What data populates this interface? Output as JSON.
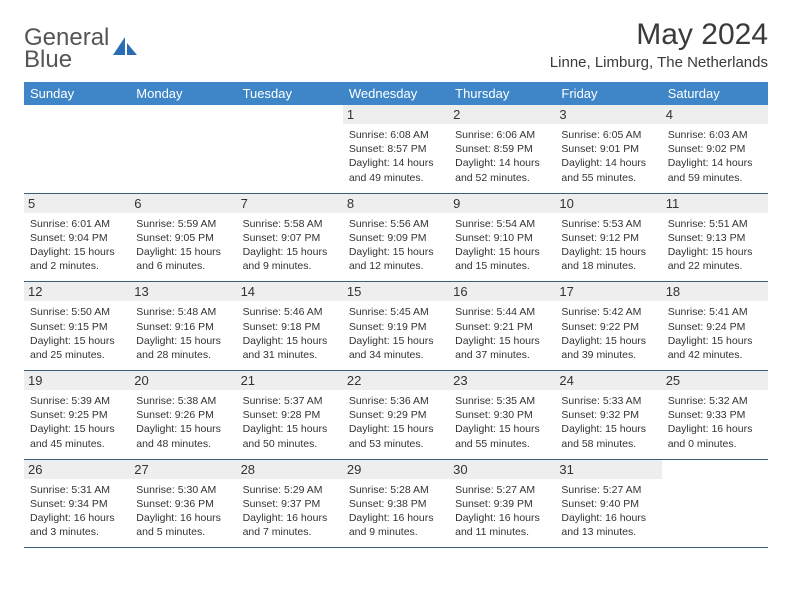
{
  "brand": {
    "line1": "General",
    "line2": "Blue"
  },
  "title": "May 2024",
  "location": "Linne, Limburg, The Netherlands",
  "colors": {
    "header_bg": "#3e86c7",
    "header_text": "#ffffff",
    "daynum_bg": "#eeeeee",
    "week_border": "#3e5f7a",
    "text": "#333333"
  },
  "weekdays": [
    "Sunday",
    "Monday",
    "Tuesday",
    "Wednesday",
    "Thursday",
    "Friday",
    "Saturday"
  ],
  "weeks": [
    [
      null,
      null,
      null,
      {
        "day": "1",
        "sunrise": "Sunrise: 6:08 AM",
        "sunset": "Sunset: 8:57 PM",
        "day1": "Daylight: 14 hours",
        "day2": "and 49 minutes."
      },
      {
        "day": "2",
        "sunrise": "Sunrise: 6:06 AM",
        "sunset": "Sunset: 8:59 PM",
        "day1": "Daylight: 14 hours",
        "day2": "and 52 minutes."
      },
      {
        "day": "3",
        "sunrise": "Sunrise: 6:05 AM",
        "sunset": "Sunset: 9:01 PM",
        "day1": "Daylight: 14 hours",
        "day2": "and 55 minutes."
      },
      {
        "day": "4",
        "sunrise": "Sunrise: 6:03 AM",
        "sunset": "Sunset: 9:02 PM",
        "day1": "Daylight: 14 hours",
        "day2": "and 59 minutes."
      }
    ],
    [
      {
        "day": "5",
        "sunrise": "Sunrise: 6:01 AM",
        "sunset": "Sunset: 9:04 PM",
        "day1": "Daylight: 15 hours",
        "day2": "and 2 minutes."
      },
      {
        "day": "6",
        "sunrise": "Sunrise: 5:59 AM",
        "sunset": "Sunset: 9:05 PM",
        "day1": "Daylight: 15 hours",
        "day2": "and 6 minutes."
      },
      {
        "day": "7",
        "sunrise": "Sunrise: 5:58 AM",
        "sunset": "Sunset: 9:07 PM",
        "day1": "Daylight: 15 hours",
        "day2": "and 9 minutes."
      },
      {
        "day": "8",
        "sunrise": "Sunrise: 5:56 AM",
        "sunset": "Sunset: 9:09 PM",
        "day1": "Daylight: 15 hours",
        "day2": "and 12 minutes."
      },
      {
        "day": "9",
        "sunrise": "Sunrise: 5:54 AM",
        "sunset": "Sunset: 9:10 PM",
        "day1": "Daylight: 15 hours",
        "day2": "and 15 minutes."
      },
      {
        "day": "10",
        "sunrise": "Sunrise: 5:53 AM",
        "sunset": "Sunset: 9:12 PM",
        "day1": "Daylight: 15 hours",
        "day2": "and 18 minutes."
      },
      {
        "day": "11",
        "sunrise": "Sunrise: 5:51 AM",
        "sunset": "Sunset: 9:13 PM",
        "day1": "Daylight: 15 hours",
        "day2": "and 22 minutes."
      }
    ],
    [
      {
        "day": "12",
        "sunrise": "Sunrise: 5:50 AM",
        "sunset": "Sunset: 9:15 PM",
        "day1": "Daylight: 15 hours",
        "day2": "and 25 minutes."
      },
      {
        "day": "13",
        "sunrise": "Sunrise: 5:48 AM",
        "sunset": "Sunset: 9:16 PM",
        "day1": "Daylight: 15 hours",
        "day2": "and 28 minutes."
      },
      {
        "day": "14",
        "sunrise": "Sunrise: 5:46 AM",
        "sunset": "Sunset: 9:18 PM",
        "day1": "Daylight: 15 hours",
        "day2": "and 31 minutes."
      },
      {
        "day": "15",
        "sunrise": "Sunrise: 5:45 AM",
        "sunset": "Sunset: 9:19 PM",
        "day1": "Daylight: 15 hours",
        "day2": "and 34 minutes."
      },
      {
        "day": "16",
        "sunrise": "Sunrise: 5:44 AM",
        "sunset": "Sunset: 9:21 PM",
        "day1": "Daylight: 15 hours",
        "day2": "and 37 minutes."
      },
      {
        "day": "17",
        "sunrise": "Sunrise: 5:42 AM",
        "sunset": "Sunset: 9:22 PM",
        "day1": "Daylight: 15 hours",
        "day2": "and 39 minutes."
      },
      {
        "day": "18",
        "sunrise": "Sunrise: 5:41 AM",
        "sunset": "Sunset: 9:24 PM",
        "day1": "Daylight: 15 hours",
        "day2": "and 42 minutes."
      }
    ],
    [
      {
        "day": "19",
        "sunrise": "Sunrise: 5:39 AM",
        "sunset": "Sunset: 9:25 PM",
        "day1": "Daylight: 15 hours",
        "day2": "and 45 minutes."
      },
      {
        "day": "20",
        "sunrise": "Sunrise: 5:38 AM",
        "sunset": "Sunset: 9:26 PM",
        "day1": "Daylight: 15 hours",
        "day2": "and 48 minutes."
      },
      {
        "day": "21",
        "sunrise": "Sunrise: 5:37 AM",
        "sunset": "Sunset: 9:28 PM",
        "day1": "Daylight: 15 hours",
        "day2": "and 50 minutes."
      },
      {
        "day": "22",
        "sunrise": "Sunrise: 5:36 AM",
        "sunset": "Sunset: 9:29 PM",
        "day1": "Daylight: 15 hours",
        "day2": "and 53 minutes."
      },
      {
        "day": "23",
        "sunrise": "Sunrise: 5:35 AM",
        "sunset": "Sunset: 9:30 PM",
        "day1": "Daylight: 15 hours",
        "day2": "and 55 minutes."
      },
      {
        "day": "24",
        "sunrise": "Sunrise: 5:33 AM",
        "sunset": "Sunset: 9:32 PM",
        "day1": "Daylight: 15 hours",
        "day2": "and 58 minutes."
      },
      {
        "day": "25",
        "sunrise": "Sunrise: 5:32 AM",
        "sunset": "Sunset: 9:33 PM",
        "day1": "Daylight: 16 hours",
        "day2": "and 0 minutes."
      }
    ],
    [
      {
        "day": "26",
        "sunrise": "Sunrise: 5:31 AM",
        "sunset": "Sunset: 9:34 PM",
        "day1": "Daylight: 16 hours",
        "day2": "and 3 minutes."
      },
      {
        "day": "27",
        "sunrise": "Sunrise: 5:30 AM",
        "sunset": "Sunset: 9:36 PM",
        "day1": "Daylight: 16 hours",
        "day2": "and 5 minutes."
      },
      {
        "day": "28",
        "sunrise": "Sunrise: 5:29 AM",
        "sunset": "Sunset: 9:37 PM",
        "day1": "Daylight: 16 hours",
        "day2": "and 7 minutes."
      },
      {
        "day": "29",
        "sunrise": "Sunrise: 5:28 AM",
        "sunset": "Sunset: 9:38 PM",
        "day1": "Daylight: 16 hours",
        "day2": "and 9 minutes."
      },
      {
        "day": "30",
        "sunrise": "Sunrise: 5:27 AM",
        "sunset": "Sunset: 9:39 PM",
        "day1": "Daylight: 16 hours",
        "day2": "and 11 minutes."
      },
      {
        "day": "31",
        "sunrise": "Sunrise: 5:27 AM",
        "sunset": "Sunset: 9:40 PM",
        "day1": "Daylight: 16 hours",
        "day2": "and 13 minutes."
      },
      null
    ]
  ]
}
